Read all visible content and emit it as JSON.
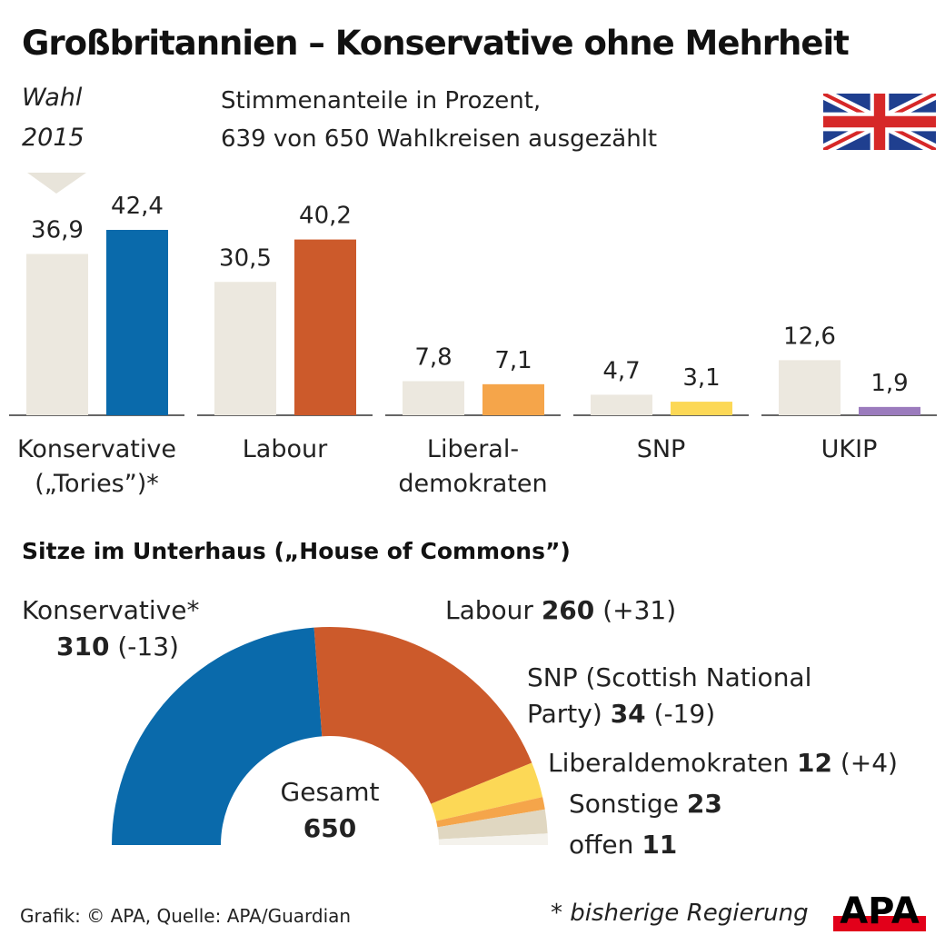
{
  "title": "Großbritannien – Konservative ohne Mehrheit",
  "wahl_label": [
    "Wahl",
    "2015"
  ],
  "subtitle": [
    "Stimmenanteile in Prozent,",
    "639 von 650 Wahlkreisen ausgezählt"
  ],
  "chart_data": [
    {
      "type": "bar",
      "categories": [
        "Konservative („Tories”)*",
        "Labour",
        "Liberal-demokraten",
        "SNP",
        "UKIP"
      ],
      "category_lines": [
        [
          "Konservative",
          "(„Tories”)*"
        ],
        [
          "Labour"
        ],
        [
          "Liberal-",
          "demokraten"
        ],
        [
          "SNP"
        ],
        [
          "UKIP"
        ]
      ],
      "series": [
        {
          "name": "2015 (Wahl)",
          "values": [
            36.9,
            30.5,
            7.8,
            4.7,
            12.6
          ],
          "labels": [
            "36,9",
            "30,5",
            "7,8",
            "4,7",
            "12,6"
          ],
          "color": "#ece8df"
        },
        {
          "values": [
            42.4,
            40.2,
            7.1,
            3.1,
            1.9
          ],
          "labels": [
            "42,4",
            "40,2",
            "7,1",
            "3,1",
            "1,9"
          ],
          "colors": [
            "#0a6aab",
            "#cc5a2b",
            "#f5a54a",
            "#fcd856",
            "#9b7bbd"
          ]
        }
      ],
      "ylim": [
        0,
        42.4
      ]
    },
    {
      "type": "pie",
      "subtype": "half-donut",
      "title": "Sitze im Unterhaus („House of Commons”)",
      "center_label": [
        "Gesamt",
        "650"
      ],
      "slices": [
        {
          "label": "Konservative*",
          "value": 310,
          "change": "(-13)",
          "color": "#0a6aab"
        },
        {
          "label": "Labour",
          "value": 260,
          "change": "(+31)",
          "color": "#cc5a2b"
        },
        {
          "label": "SNP (Scottish National Party)",
          "label_lines": [
            "SNP (Scottish National",
            "Party)"
          ],
          "value": 34,
          "change": "(-19)",
          "color": "#fcd856"
        },
        {
          "label": "Liberaldemokraten",
          "value": 12,
          "change": "(+4)",
          "color": "#f5a54a"
        },
        {
          "label": "Sonstige",
          "value": 23,
          "change": "",
          "color": "#e0d7c1"
        },
        {
          "label": "offen",
          "value": 11,
          "change": "",
          "color": "#f4f2ec"
        }
      ]
    }
  ],
  "source": "Grafik: © APA, Quelle: APA/Guardian",
  "footnote": "* bisherige Regierung",
  "logo": "APA",
  "flag": "union-jack-flag-icon"
}
